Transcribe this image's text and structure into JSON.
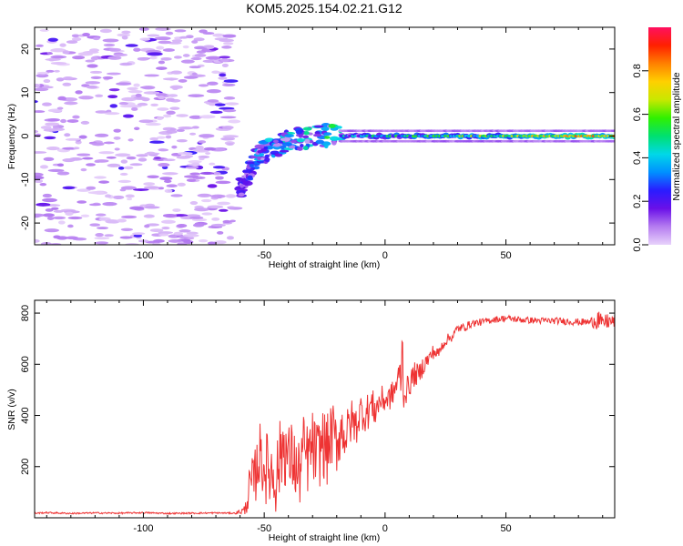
{
  "chart_data": [
    {
      "type": "heatmap",
      "title": "KOM5.2025.154.02.21.G12",
      "xlabel": "Height of straight line (km)",
      "ylabel": "Frequency (Hz)",
      "xlim": [
        -145,
        95
      ],
      "ylim": [
        -25,
        25
      ],
      "xticks": [
        -100,
        -50,
        0,
        50
      ],
      "yticks": [
        20,
        10,
        0,
        -10,
        -20
      ],
      "colorbar": {
        "label": "Normalized spectral amplitude",
        "ticks": [
          "0.0",
          "0.2",
          "0.4",
          "0.6",
          "0.8"
        ],
        "tick_values": [
          0,
          0.2,
          0.4,
          0.6,
          0.8
        ],
        "range": [
          0,
          1
        ],
        "colormap": [
          "#e8d2fb",
          "#b57cf0",
          "#6a10e8",
          "#2a1cff",
          "#0090ff",
          "#00d8e8",
          "#00e070",
          "#30f000",
          "#c8e800",
          "#ffd000",
          "#ff8000",
          "#ff2000",
          "#ff1060"
        ]
      },
      "features": {
        "noise_region_x": [
          -145,
          -62
        ],
        "transition": [
          {
            "x": -61,
            "f": -13
          },
          {
            "x": -57,
            "f": -9
          },
          {
            "x": -53,
            "f": -5
          },
          {
            "x": -48,
            "f": -3
          },
          {
            "x": -42,
            "f": -1.5
          },
          {
            "x": -36,
            "f": -0.5
          },
          {
            "x": -28,
            "f": 0
          },
          {
            "x": -18,
            "f": 0.3
          }
        ],
        "carrier_band": {
          "x_start": -18,
          "x_end": 95,
          "f_center": 0,
          "f_halfwidth": 1.2
        },
        "peak_amplitude": 1.0
      },
      "grid": false
    },
    {
      "type": "line",
      "xlabel": "Height of straight line (km)",
      "ylabel": "SNR (v/v)",
      "xlim": [
        -145,
        95
      ],
      "ylim": [
        0,
        850
      ],
      "xticks": [
        -100,
        -50,
        0,
        50
      ],
      "yticks": [
        200,
        400,
        600,
        800
      ],
      "line_color": "#ee3333",
      "series": [
        {
          "x": [
            -145,
            -140,
            -130,
            -120,
            -110,
            -100,
            -90,
            -80,
            -70,
            -62,
            -58,
            -56,
            -54,
            -52,
            -50,
            -47,
            -45,
            -42,
            -40,
            -38,
            -36,
            -34,
            -32,
            -30,
            -28,
            -26,
            -24,
            -22,
            -20,
            -18,
            -16,
            -14,
            -12,
            -10,
            -8,
            -6,
            -4,
            -2,
            0,
            2,
            4,
            6,
            7,
            8,
            10,
            12,
            14,
            16,
            18,
            20,
            22,
            24,
            26,
            28,
            30,
            33,
            36,
            40,
            45,
            50,
            55,
            60,
            65,
            70,
            75,
            80,
            85,
            88,
            90,
            92,
            94,
            95
          ],
          "values": [
            18,
            20,
            17,
            19,
            18,
            20,
            17,
            18,
            19,
            18,
            30,
            120,
            150,
            250,
            200,
            180,
            160,
            300,
            220,
            240,
            150,
            260,
            230,
            280,
            230,
            300,
            260,
            330,
            290,
            350,
            320,
            380,
            360,
            420,
            400,
            440,
            420,
            460,
            460,
            470,
            500,
            560,
            620,
            480,
            520,
            560,
            560,
            600,
            620,
            650,
            640,
            680,
            700,
            710,
            740,
            745,
            760,
            765,
            775,
            780,
            775,
            772,
            770,
            770,
            768,
            765,
            765,
            780,
            760,
            770,
            765,
            770
          ],
          "noise_amplitude": [
            3,
            3,
            3,
            3,
            3,
            3,
            3,
            3,
            3,
            3,
            20,
            90,
            110,
            130,
            140,
            150,
            150,
            160,
            150,
            140,
            150,
            150,
            140,
            140,
            150,
            140,
            140,
            130,
            120,
            110,
            100,
            90,
            80,
            70,
            70,
            80,
            60,
            60,
            50,
            50,
            50,
            60,
            220,
            50,
            50,
            50,
            40,
            40,
            30,
            30,
            25,
            22,
            20,
            20,
            18,
            16,
            15,
            14,
            13,
            13,
            13,
            13,
            13,
            13,
            14,
            14,
            15,
            50,
            20,
            35,
            25,
            30
          ]
        }
      ],
      "grid": false
    }
  ]
}
